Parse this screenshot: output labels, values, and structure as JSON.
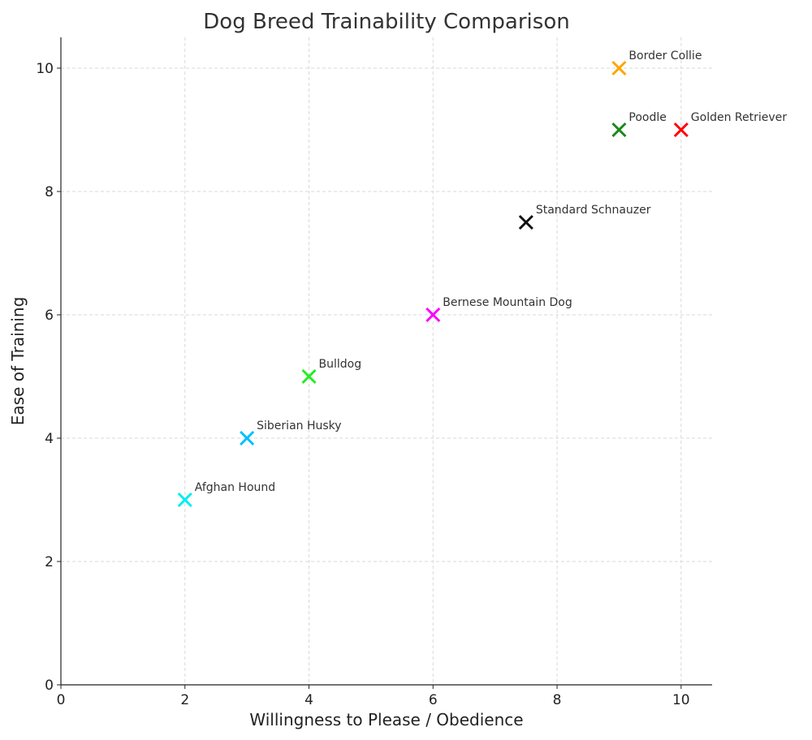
{
  "chart_data": {
    "type": "scatter",
    "title": "Dog Breed Trainability Comparison",
    "xlabel": "Willingness to Please / Obedience",
    "ylabel": "Ease of Training",
    "xlim": [
      0,
      10.5
    ],
    "ylim": [
      0,
      10.5
    ],
    "xticks": [
      "0",
      "2",
      "4",
      "6",
      "8",
      "10"
    ],
    "yticks": [
      "0",
      "2",
      "4",
      "6",
      "8",
      "10"
    ],
    "grid": true,
    "marker": "x",
    "points": [
      {
        "label": "Border Collie",
        "x": 9,
        "y": 10,
        "color": "#FFA500"
      },
      {
        "label": "Poodle",
        "x": 9,
        "y": 9,
        "color": "#1A8A1A"
      },
      {
        "label": "Golden Retriever",
        "x": 10,
        "y": 9,
        "color": "#FF0000"
      },
      {
        "label": "Standard Schnauzer",
        "x": 7.5,
        "y": 7.5,
        "color": "#111111"
      },
      {
        "label": "Bernese Mountain Dog",
        "x": 6,
        "y": 6,
        "color": "#FF00FF"
      },
      {
        "label": "Bulldog",
        "x": 4,
        "y": 5,
        "color": "#22EE22"
      },
      {
        "label": "Siberian Husky",
        "x": 3,
        "y": 4,
        "color": "#00BFFF"
      },
      {
        "label": "Afghan Hound",
        "x": 2,
        "y": 3,
        "color": "#00EEEE"
      }
    ]
  }
}
